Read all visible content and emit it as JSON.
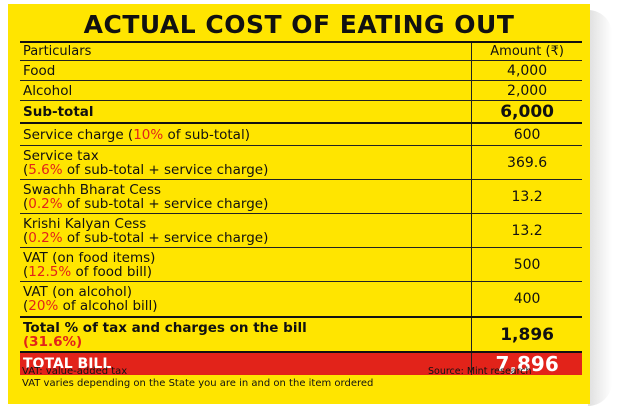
{
  "title": "ACTUAL COST OF EATING OUT",
  "header": {
    "particulars": "Particulars",
    "amount": "Amount (₹)"
  },
  "rows": [
    {
      "l1": "Food",
      "amount": "4,000"
    },
    {
      "l1": "Alcohol",
      "amount": "2,000"
    },
    {
      "l1": "Sub-total",
      "amount": "6,000"
    },
    {
      "pre": "Service charge (",
      "red": "10%",
      "post": " of sub-total)",
      "amount": "600"
    },
    {
      "l1": "Service tax",
      "red": "5.6%",
      "post": " of sub-total + service charge)",
      "pre": "(",
      "amount": "369.6"
    },
    {
      "l1": "Swachh Bharat Cess",
      "pre": "(",
      "red": "0.2%",
      "post": " of sub-total + service charge)",
      "amount": "13.2"
    },
    {
      "l1": "Krishi Kalyan Cess",
      "pre": "(",
      "red": "0.2%",
      "post": " of sub-total + service charge)",
      "amount": "13.2"
    },
    {
      "l1": "VAT (on food items)",
      "pre": "(",
      "red": "12.5%",
      "post": " of food bill)",
      "amount": "500"
    },
    {
      "l1": "VAT (on alcohol)",
      "pre": "(",
      "red": "20%",
      "post": " of alcohol bill)",
      "amount": "400"
    },
    {
      "l1": "Total % of tax and charges on the bill",
      "l2": "(31.6%)",
      "amount": "1,896"
    }
  ],
  "total": {
    "label": "TOTAL BILL",
    "amount": "7,896"
  },
  "notes": {
    "line1": "VAT: value-added tax",
    "line2": "VAT varies depending on the State you are in and on the item ordered",
    "source": "Source: Mint research"
  }
}
